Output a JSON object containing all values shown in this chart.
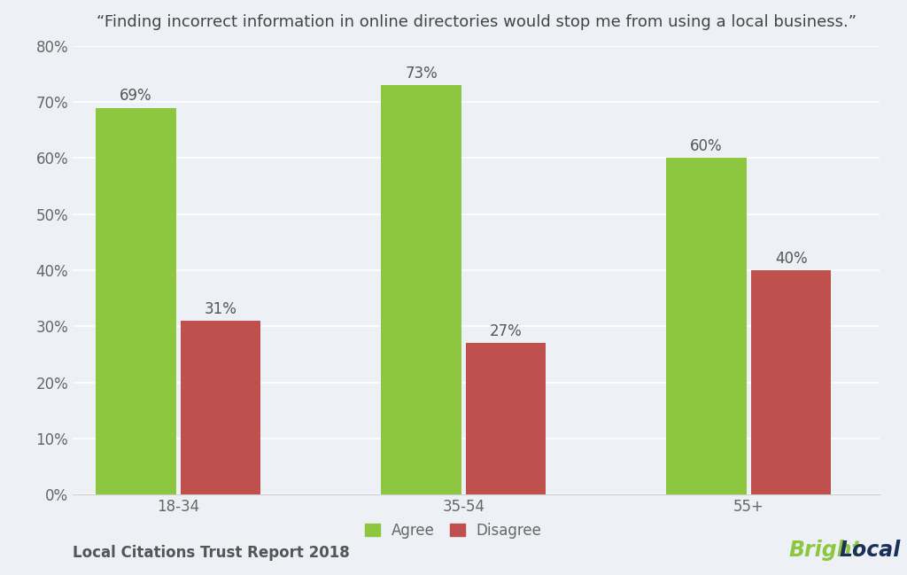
{
  "title": "“Finding incorrect information in online directories would stop me from using a local business.”",
  "categories": [
    "18-34",
    "35-54",
    "55+"
  ],
  "agree_values": [
    69,
    73,
    60
  ],
  "disagree_values": [
    31,
    27,
    40
  ],
  "agree_color": "#8dc63f",
  "disagree_color": "#c0504d",
  "background_color": "#edf0f5",
  "ylim": [
    0,
    80
  ],
  "yticks": [
    0,
    10,
    20,
    30,
    40,
    50,
    60,
    70,
    80
  ],
  "bar_width": 0.38,
  "footer_left": "Local Citations Trust Report 2018",
  "legend_agree": "Agree",
  "legend_disagree": "Disagree",
  "bright_color": "#8dc63f",
  "local_color": "#1a2f5a",
  "title_fontsize": 13,
  "tick_fontsize": 12,
  "footer_fontsize": 12,
  "annotation_fontsize": 12
}
